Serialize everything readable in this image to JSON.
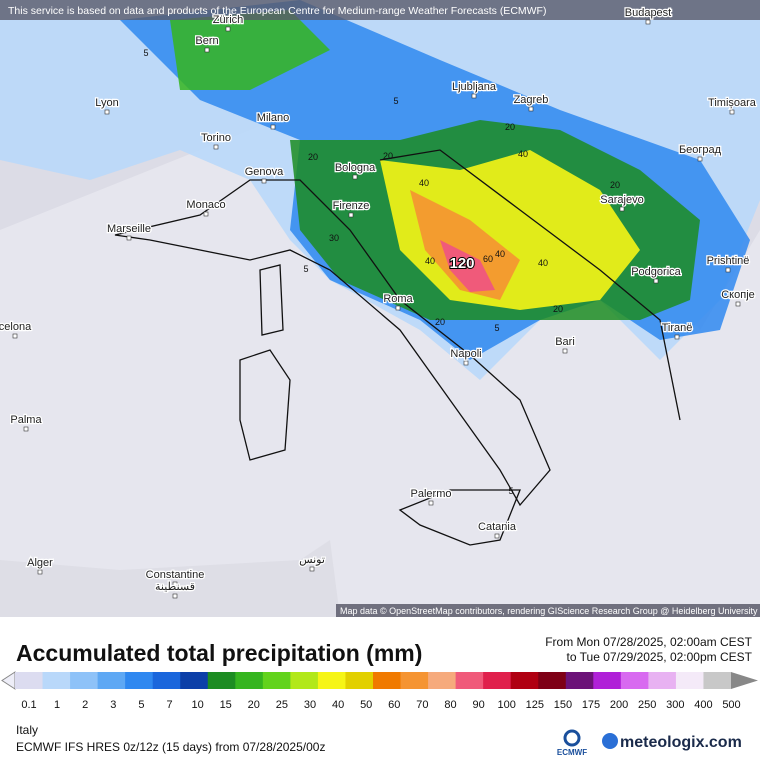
{
  "banner": "This service is based on data and products of the European Centre for Medium-range Weather Forecasts (ECMWF)",
  "attribution": "Map data © OpenStreetMap contributors, rendering GIScience Research Group @ Heidelberg University",
  "map": {
    "cities": [
      "Zürich",
      "Bern",
      "Budapest",
      "Lyon",
      "Milano",
      "Ljubljana",
      "Zagreb",
      "Timișoara",
      "Torino",
      "Bologna",
      "Београд",
      "Genova",
      "Sarajevo",
      "Monaco",
      "Firenze",
      "Marseille",
      "Podgorica",
      "Prishtinë",
      "Roma",
      "Скопје",
      "celona",
      "Tiranë",
      "Bari",
      "Napoli",
      "Palma",
      "Palermo",
      "Catania",
      "Alger",
      "Constantine",
      "قسنطينة",
      "تونس"
    ],
    "contour_labels": [
      120,
      60,
      40,
      40,
      40,
      40,
      40,
      20,
      20,
      20,
      20,
      20,
      20,
      30,
      5,
      5,
      5,
      5,
      5
    ]
  },
  "title": "Accumulated total precipitation (mm)",
  "period_from": "From Mon 07/28/2025, 02:00am CEST",
  "period_to": "to Tue 07/29/2025, 02:00pm CEST",
  "legend": [
    {
      "label": 0.1,
      "color": "#dcdcf0"
    },
    {
      "label": 1,
      "color": "#b9d8fa"
    },
    {
      "label": 2,
      "color": "#8ec2f8"
    },
    {
      "label": 3,
      "color": "#5ea8f4"
    },
    {
      "label": 5,
      "color": "#2f88f0"
    },
    {
      "label": 7,
      "color": "#1a66dc"
    },
    {
      "label": 10,
      "color": "#0c3fa8"
    },
    {
      "label": 15,
      "color": "#1c8c22"
    },
    {
      "label": 20,
      "color": "#35b51f"
    },
    {
      "label": 25,
      "color": "#62d31c"
    },
    {
      "label": 30,
      "color": "#b2e81a"
    },
    {
      "label": 40,
      "color": "#f6f516"
    },
    {
      "label": 50,
      "color": "#e2d000"
    },
    {
      "label": 60,
      "color": "#f07a00"
    },
    {
      "label": 70,
      "color": "#f59432"
    },
    {
      "label": 80,
      "color": "#f6aa7c"
    },
    {
      "label": 90,
      "color": "#f05a7a"
    },
    {
      "label": 100,
      "color": "#e0204c"
    },
    {
      "label": 125,
      "color": "#b00012"
    },
    {
      "label": 150,
      "color": "#7e0016"
    },
    {
      "label": 175,
      "color": "#6c1278"
    },
    {
      "label": 200,
      "color": "#b020d8"
    },
    {
      "label": 250,
      "color": "#d86af0"
    },
    {
      "label": 300,
      "color": "#e8b2f2"
    },
    {
      "label": 400,
      "color": "#f4eaf8"
    },
    {
      "label": 500,
      "color": "#c8c8c8"
    }
  ],
  "region": "Italy",
  "model": "ECMWF IFS HRES 0z/12z (15 days) from 07/28/2025/00z",
  "logo_ecmwf": "ECMWF",
  "logo_site": "meteologix.com"
}
